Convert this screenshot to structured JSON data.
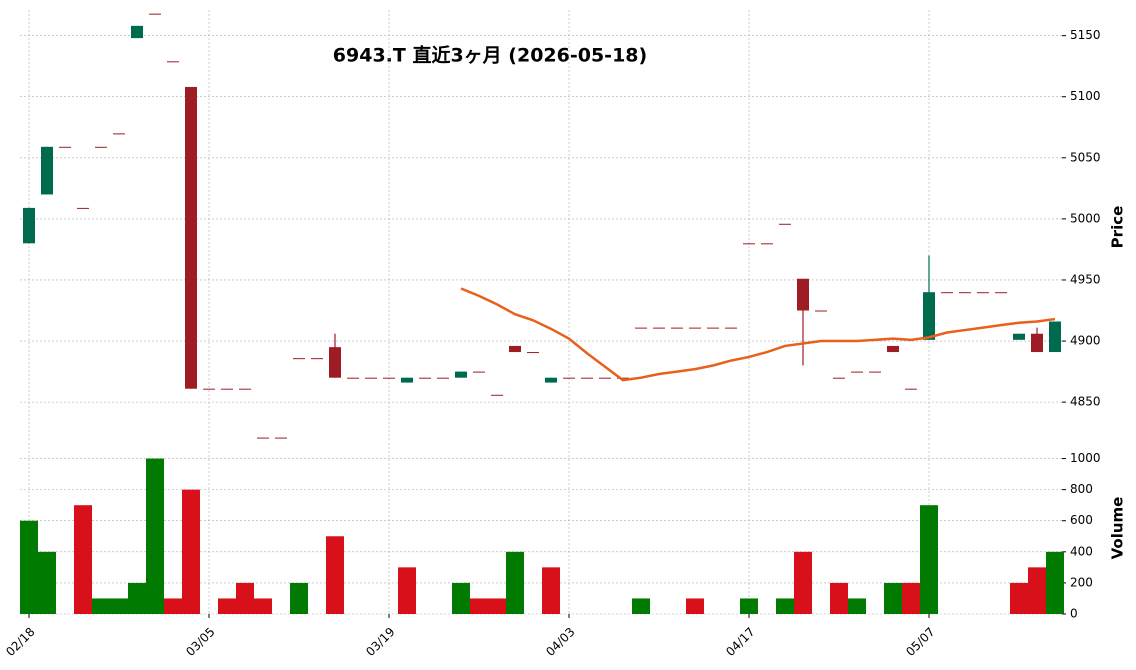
{
  "chart_data": {
    "type": "candlestick",
    "title": "6943.T  直近3ヶ月 (2026-05-18)",
    "categories": [
      "02/18",
      null,
      null,
      null,
      null,
      null,
      null,
      null,
      null,
      null,
      "03/05",
      null,
      null,
      null,
      null,
      null,
      null,
      null,
      null,
      null,
      "03/19",
      null,
      null,
      null,
      null,
      null,
      null,
      null,
      null,
      null,
      "04/03",
      null,
      null,
      null,
      null,
      null,
      null,
      null,
      null,
      null,
      "04/17",
      null,
      null,
      null,
      null,
      null,
      null,
      null,
      null,
      null,
      "05/07",
      null,
      null,
      null,
      null,
      null,
      null,
      null
    ],
    "open": [
      4980,
      5020,
      5059,
      5009,
      5059,
      5070,
      5148,
      5168,
      5129,
      5108,
      4861,
      4861,
      4861,
      4821,
      4821,
      4886,
      4886,
      4895,
      4870,
      4870,
      4870,
      4866,
      4870,
      4870,
      4870,
      4875,
      4856,
      4896,
      4891,
      4866,
      4870,
      4870,
      4870,
      4870,
      4911,
      4911,
      4911,
      4911,
      4911,
      4911,
      4980,
      4980,
      4996,
      4951,
      4925,
      4870,
      4875,
      4875,
      4896,
      4861,
      4901,
      4940,
      4940,
      4940,
      4940,
      4901,
      4906,
      4891
    ],
    "high": [
      5009,
      5059,
      5059,
      5009,
      5059,
      5070,
      5158,
      5168,
      5129,
      5108,
      4861,
      4861,
      4861,
      4821,
      4821,
      4886,
      4886,
      4906,
      4870,
      4870,
      4870,
      4870,
      4870,
      4870,
      4875,
      4875,
      4856,
      4896,
      4891,
      4870,
      4870,
      4870,
      4870,
      4870,
      4911,
      4911,
      4911,
      4911,
      4911,
      4911,
      4980,
      4980,
      4996,
      4951,
      4925,
      4870,
      4875,
      4875,
      4896,
      4861,
      4970,
      4940,
      4940,
      4940,
      4940,
      4906,
      4911,
      4916
    ],
    "low": [
      4980,
      5020,
      5059,
      5009,
      5059,
      5070,
      5148,
      5168,
      5129,
      4861,
      4861,
      4861,
      4861,
      4821,
      4821,
      4886,
      4886,
      4870,
      4870,
      4870,
      4870,
      4866,
      4870,
      4870,
      4870,
      4875,
      4856,
      4891,
      4891,
      4866,
      4870,
      4870,
      4870,
      4870,
      4911,
      4911,
      4911,
      4911,
      4911,
      4911,
      4980,
      4980,
      4996,
      4880,
      4925,
      4870,
      4875,
      4875,
      4891,
      4861,
      4901,
      4940,
      4940,
      4940,
      4940,
      4901,
      4891,
      4891
    ],
    "close": [
      5009,
      5059,
      5059,
      5009,
      5059,
      5070,
      5158,
      5168,
      5129,
      4861,
      4861,
      4861,
      4861,
      4821,
      4821,
      4886,
      4886,
      4870,
      4870,
      4870,
      4870,
      4870,
      4870,
      4870,
      4875,
      4875,
      4856,
      4891,
      4891,
      4870,
      4870,
      4870,
      4870,
      4870,
      4911,
      4911,
      4911,
      4911,
      4911,
      4911,
      4980,
      4980,
      4996,
      4925,
      4925,
      4870,
      4875,
      4875,
      4891,
      4861,
      4940,
      4940,
      4940,
      4940,
      4940,
      4906,
      4891,
      4916
    ],
    "ma": [
      null,
      null,
      null,
      null,
      null,
      null,
      null,
      null,
      null,
      null,
      null,
      null,
      null,
      null,
      null,
      null,
      null,
      null,
      null,
      null,
      null,
      null,
      null,
      null,
      4943,
      4937,
      4930,
      4922,
      4917,
      4910,
      4902,
      4890,
      4879,
      4868,
      4870,
      4873,
      4875,
      4877,
      4880,
      4884,
      4887,
      4891,
      4896,
      4898,
      4900,
      4900,
      4900,
      4901,
      4902,
      4901,
      4903,
      4907,
      4909,
      4911,
      4913,
      4915,
      4916,
      4918
    ],
    "ma_color": "#e8601c",
    "up_color": "#006a4e",
    "down_color": "#9e1c24",
    "volume": [
      600,
      400,
      0,
      700,
      100,
      100,
      200,
      1000,
      100,
      800,
      0,
      100,
      200,
      100,
      0,
      200,
      0,
      500,
      0,
      0,
      0,
      300,
      0,
      0,
      200,
      100,
      100,
      400,
      0,
      300,
      0,
      0,
      0,
      0,
      100,
      0,
      0,
      100,
      0,
      0,
      100,
      0,
      100,
      400,
      0,
      200,
      100,
      0,
      200,
      200,
      700,
      0,
      0,
      0,
      0,
      200,
      300,
      400
    ],
    "volume_up": [
      true,
      true,
      true,
      false,
      true,
      true,
      true,
      true,
      false,
      false,
      true,
      false,
      false,
      false,
      true,
      true,
      true,
      false,
      true,
      true,
      true,
      false,
      true,
      true,
      true,
      false,
      false,
      true,
      true,
      false,
      true,
      true,
      true,
      true,
      true,
      true,
      true,
      false,
      true,
      true,
      true,
      true,
      true,
      false,
      true,
      false,
      true,
      true,
      true,
      false,
      true,
      true,
      true,
      true,
      true,
      false,
      false,
      true
    ],
    "volume_up_color": "#007a00",
    "volume_down_color": "#d7101a",
    "ylabel": "Price",
    "ylim": [
      4819,
      5171
    ],
    "yticks": [
      4850,
      4900,
      4950,
      5000,
      5050,
      5100,
      5150
    ],
    "volume_ylabel": "Volume",
    "volume_ylim": [
      0,
      1100
    ],
    "volume_yticks": [
      0,
      200,
      400,
      600,
      800,
      1000
    ],
    "grid": true
  }
}
